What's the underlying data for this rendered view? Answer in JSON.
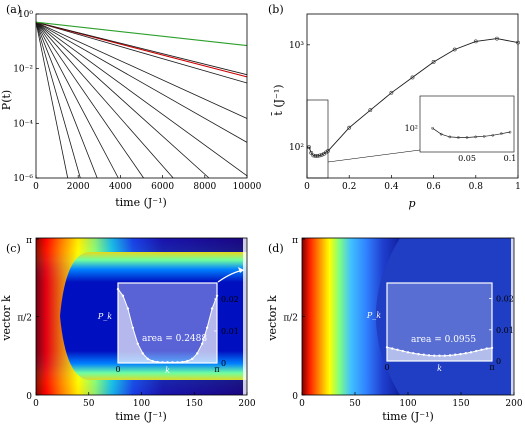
{
  "colors": {
    "line_black": "#1a1a1a",
    "line_red": "#cc0000",
    "line_green": "#2ca02c",
    "heatmap_stops": [
      "#7f0000",
      "#ff0000",
      "#ff8000",
      "#ffff00",
      "#80ff80",
      "#00c0ff",
      "#0040ff",
      "#000080"
    ]
  },
  "chart_data": [
    {
      "panel": "(a)",
      "type": "line",
      "xlabel": "time (J⁻¹)",
      "ylabel": "P(t)",
      "xlim": [
        0,
        10000
      ],
      "ylim": [
        1e-06,
        1
      ],
      "yscale": "log",
      "xticks": [
        "0",
        "2000",
        "4000",
        "6000",
        "8000",
        "10000"
      ],
      "yticks": [
        "10⁰",
        "10⁻²",
        "10⁻⁴",
        "10⁻⁶"
      ],
      "series": [
        {
          "style": "black",
          "x": [
            0,
            1500
          ],
          "y": [
            0.5,
            1e-06
          ]
        },
        {
          "style": "black",
          "x": [
            0,
            2100
          ],
          "y": [
            0.5,
            1e-06
          ]
        },
        {
          "style": "black",
          "x": [
            0,
            2900
          ],
          "y": [
            0.5,
            1e-06
          ]
        },
        {
          "style": "black",
          "x": [
            0,
            3900
          ],
          "y": [
            0.5,
            1e-06
          ]
        },
        {
          "style": "black",
          "x": [
            0,
            5100
          ],
          "y": [
            0.5,
            1e-06
          ]
        },
        {
          "style": "black",
          "x": [
            0,
            6500
          ],
          "y": [
            0.5,
            1e-06
          ]
        },
        {
          "style": "black",
          "x": [
            0,
            8200
          ],
          "y": [
            0.5,
            1e-06
          ]
        },
        {
          "style": "black",
          "x": [
            0,
            10000
          ],
          "y": [
            0.5,
            1.2e-06
          ]
        },
        {
          "style": "black",
          "x": [
            0,
            10000
          ],
          "y": [
            0.5,
            2e-05
          ]
        },
        {
          "style": "black",
          "x": [
            0,
            10000
          ],
          "y": [
            0.5,
            0.00015
          ]
        },
        {
          "style": "black",
          "x": [
            0,
            10000
          ],
          "y": [
            0.5,
            0.003
          ]
        },
        {
          "style": "red",
          "x": [
            0,
            10000
          ],
          "y": [
            0.5,
            0.005
          ]
        },
        {
          "style": "black",
          "x": [
            0,
            10000
          ],
          "y": [
            0.5,
            0.006
          ]
        },
        {
          "style": "green",
          "x": [
            0,
            10000
          ],
          "y": [
            0.5,
            0.07
          ]
        }
      ]
    },
    {
      "panel": "(b)",
      "type": "line",
      "xlabel": "p",
      "ylabel": "t̄ (J⁻¹)",
      "xlim": [
        0,
        1
      ],
      "ylim": [
        50,
        2000
      ],
      "yscale": "log",
      "xticks": [
        "0",
        "0.2",
        "0.4",
        "0.6",
        "0.8",
        "1"
      ],
      "yticks": [
        "10²",
        "10³"
      ],
      "x": [
        0.01,
        0.02,
        0.03,
        0.04,
        0.05,
        0.06,
        0.07,
        0.08,
        0.09,
        0.1,
        0.2,
        0.3,
        0.4,
        0.5,
        0.6,
        0.7,
        0.8,
        0.9,
        1.0
      ],
      "y": [
        100,
        88,
        83,
        82,
        82,
        83,
        84,
        86,
        89,
        92,
        155,
        230,
        340,
        480,
        680,
        900,
        1080,
        1150,
        1050
      ],
      "inset": {
        "xlim": [
          0,
          0.1
        ],
        "xticks": [
          "0.05",
          "0.1"
        ],
        "yticks": [
          "10²"
        ],
        "x": [
          0.01,
          0.02,
          0.03,
          0.04,
          0.05,
          0.06,
          0.07,
          0.08,
          0.09,
          0.1
        ],
        "y": [
          100,
          88,
          83,
          82,
          82,
          83,
          84,
          86,
          89,
          92
        ]
      }
    },
    {
      "panel": "(c)",
      "type": "heatmap",
      "xlabel": "time (J⁻¹)",
      "ylabel": "vector k",
      "xlim": [
        0,
        200
      ],
      "xticks": [
        "0",
        "50",
        "100",
        "150",
        "200"
      ],
      "yticks": [
        "π",
        "π/2",
        "0"
      ],
      "inset": {
        "ylabel": "P_k",
        "xlabel": "k",
        "xticks": [
          "0",
          "π"
        ],
        "yticks": [
          "0.02",
          "0.01",
          "0"
        ],
        "ylim": [
          0,
          0.025
        ],
        "annotation": "area = 0.2488",
        "x": [
          0.05,
          0.1,
          0.15,
          0.2,
          0.25,
          0.3,
          0.35,
          0.4,
          0.45,
          0.5,
          0.55,
          0.6,
          0.65,
          0.7,
          0.75,
          0.8,
          0.85,
          0.9,
          0.95,
          1.0
        ],
        "y": [
          0.021,
          0.017,
          0.011,
          0.006,
          0.003,
          0.0013,
          0.0006,
          0.0003,
          0.0002,
          0.0002,
          0.0002,
          0.0002,
          0.0003,
          0.0006,
          0.0013,
          0.003,
          0.006,
          0.011,
          0.017,
          0.021
        ]
      }
    },
    {
      "panel": "(d)",
      "type": "heatmap",
      "xlabel": "time (J⁻¹)",
      "ylabel": "vector k",
      "xlim": [
        0,
        200
      ],
      "xticks": [
        "0",
        "50",
        "100",
        "150",
        "200"
      ],
      "yticks": [
        "π",
        "π/2",
        "0"
      ],
      "inset": {
        "ylabel": "P_k",
        "xlabel": "k",
        "xticks": [
          "0",
          "π"
        ],
        "yticks": [
          "0.02",
          "0.01",
          "0"
        ],
        "ylim": [
          0,
          0.025
        ],
        "annotation": "area = 0.0955",
        "x": [
          0.05,
          0.1,
          0.15,
          0.2,
          0.25,
          0.3,
          0.35,
          0.4,
          0.45,
          0.5,
          0.55,
          0.6,
          0.65,
          0.7,
          0.75,
          0.8,
          0.85,
          0.9,
          0.95,
          1.0
        ],
        "y": [
          0.004,
          0.0036,
          0.0032,
          0.0028,
          0.0025,
          0.0022,
          0.002,
          0.0018,
          0.0017,
          0.0017,
          0.0017,
          0.0018,
          0.002,
          0.0022,
          0.0025,
          0.0028,
          0.0032,
          0.0036,
          0.004,
          0.0042
        ]
      }
    }
  ]
}
